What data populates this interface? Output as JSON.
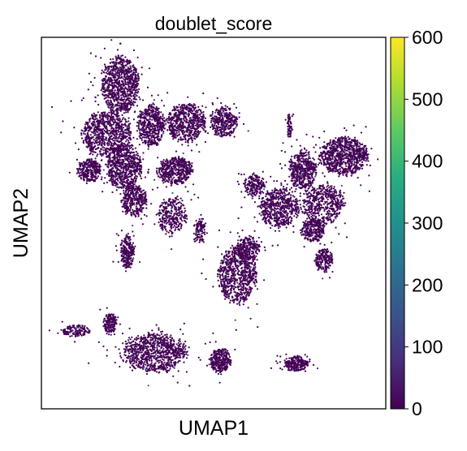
{
  "chart_data": {
    "type": "scatter",
    "title": "doublet_score",
    "xlabel": "UMAP1",
    "ylabel": "UMAP2",
    "colorbar": {
      "colormap": "viridis",
      "range": [
        0,
        600
      ],
      "ticks": [
        0,
        100,
        200,
        300,
        400,
        500,
        600
      ],
      "tick_labels": [
        "0",
        "100",
        "200",
        "300",
        "400",
        "500",
        "600"
      ]
    },
    "point_color_dominant": "#440154",
    "clusters": [
      {
        "cx": 0.23,
        "cy": 0.87,
        "rx": 0.055,
        "ry": 0.075,
        "n": 900,
        "s": 0.04
      },
      {
        "cx": 0.19,
        "cy": 0.74,
        "rx": 0.07,
        "ry": 0.06,
        "n": 800,
        "s": 0.05
      },
      {
        "cx": 0.32,
        "cy": 0.76,
        "rx": 0.04,
        "ry": 0.055,
        "n": 500,
        "s": 0.06
      },
      {
        "cx": 0.42,
        "cy": 0.77,
        "rx": 0.055,
        "ry": 0.05,
        "n": 600,
        "s": 0.06
      },
      {
        "cx": 0.53,
        "cy": 0.77,
        "rx": 0.04,
        "ry": 0.04,
        "n": 350,
        "s": 0.06
      },
      {
        "cx": 0.39,
        "cy": 0.64,
        "rx": 0.05,
        "ry": 0.035,
        "n": 500,
        "s": 0.08
      },
      {
        "cx": 0.24,
        "cy": 0.65,
        "rx": 0.05,
        "ry": 0.06,
        "n": 700,
        "s": 0.07
      },
      {
        "cx": 0.14,
        "cy": 0.64,
        "rx": 0.035,
        "ry": 0.03,
        "n": 300,
        "s": 0.06
      },
      {
        "cx": 0.27,
        "cy": 0.56,
        "rx": 0.035,
        "ry": 0.04,
        "n": 350,
        "s": 0.07
      },
      {
        "cx": 0.38,
        "cy": 0.52,
        "rx": 0.04,
        "ry": 0.045,
        "n": 300,
        "s": 0.12
      },
      {
        "cx": 0.46,
        "cy": 0.48,
        "rx": 0.015,
        "ry": 0.03,
        "n": 120,
        "s": 0.2
      },
      {
        "cx": 0.25,
        "cy": 0.42,
        "rx": 0.02,
        "ry": 0.045,
        "n": 250,
        "s": 0.06
      },
      {
        "cx": 0.57,
        "cy": 0.36,
        "rx": 0.055,
        "ry": 0.075,
        "n": 800,
        "s": 0.05
      },
      {
        "cx": 0.6,
        "cy": 0.43,
        "rx": 0.035,
        "ry": 0.03,
        "n": 250,
        "s": 0.08
      },
      {
        "cx": 0.88,
        "cy": 0.68,
        "rx": 0.07,
        "ry": 0.05,
        "n": 900,
        "s": 0.04
      },
      {
        "cx": 0.76,
        "cy": 0.64,
        "rx": 0.04,
        "ry": 0.05,
        "n": 500,
        "s": 0.08
      },
      {
        "cx": 0.82,
        "cy": 0.55,
        "rx": 0.06,
        "ry": 0.05,
        "n": 500,
        "s": 0.1
      },
      {
        "cx": 0.69,
        "cy": 0.54,
        "rx": 0.055,
        "ry": 0.05,
        "n": 600,
        "s": 0.1
      },
      {
        "cx": 0.62,
        "cy": 0.6,
        "rx": 0.03,
        "ry": 0.03,
        "n": 200,
        "s": 0.08
      },
      {
        "cx": 0.79,
        "cy": 0.48,
        "rx": 0.035,
        "ry": 0.03,
        "n": 300,
        "s": 0.06
      },
      {
        "cx": 0.82,
        "cy": 0.4,
        "rx": 0.025,
        "ry": 0.03,
        "n": 200,
        "s": 0.06
      },
      {
        "cx": 0.72,
        "cy": 0.76,
        "rx": 0.006,
        "ry": 0.03,
        "n": 60,
        "s": 0.15
      },
      {
        "cx": 0.1,
        "cy": 0.21,
        "rx": 0.04,
        "ry": 0.015,
        "n": 150,
        "s": 0.06
      },
      {
        "cx": 0.2,
        "cy": 0.23,
        "rx": 0.02,
        "ry": 0.025,
        "n": 180,
        "s": 0.06
      },
      {
        "cx": 0.33,
        "cy": 0.15,
        "rx": 0.09,
        "ry": 0.05,
        "n": 900,
        "s": 0.1
      },
      {
        "cx": 0.52,
        "cy": 0.13,
        "rx": 0.03,
        "ry": 0.03,
        "n": 300,
        "s": 0.08
      },
      {
        "cx": 0.74,
        "cy": 0.12,
        "rx": 0.035,
        "ry": 0.02,
        "n": 250,
        "s": 0.06
      }
    ]
  }
}
